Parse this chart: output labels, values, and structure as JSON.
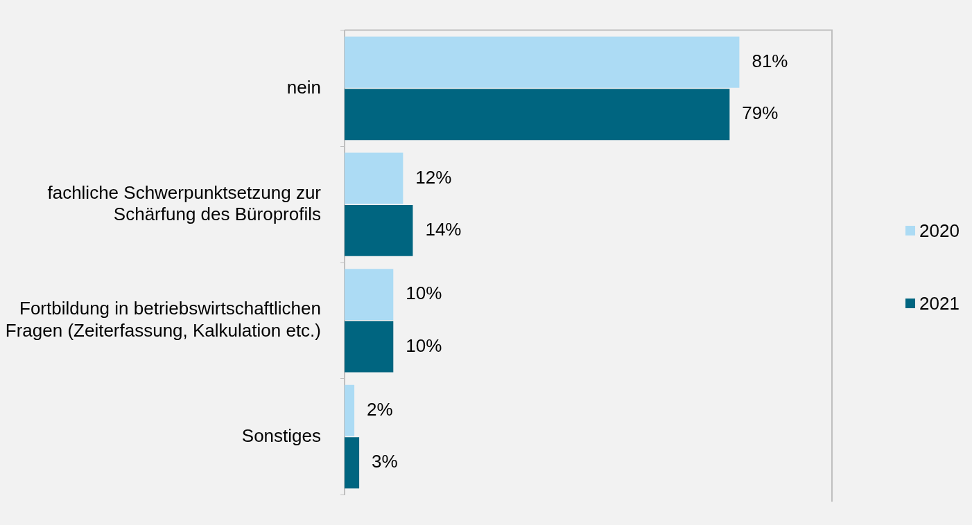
{
  "chart_data": {
    "type": "bar",
    "orientation": "horizontal",
    "categories": [
      "nein",
      "fachliche Schwerpunktsetzung zur Schärfung des Büroprofils",
      "Fortbildung in betriebswirtschaftlichen Fragen (Zeiterfassung, Kalkulation etc.)",
      "Sonstiges"
    ],
    "series": [
      {
        "name": "2020",
        "color": "#acdbf4",
        "values": [
          81,
          12,
          10,
          2
        ],
        "value_labels": [
          "81%",
          "12%",
          "10%",
          "2%"
        ]
      },
      {
        "name": "2021",
        "color": "#006580",
        "values": [
          79,
          14,
          10,
          3
        ],
        "value_labels": [
          "79%",
          "14%",
          "10%",
          "3%"
        ]
      }
    ],
    "xlim": [
      0,
      100
    ],
    "tick_labels": "y",
    "grid": false,
    "legend": "right"
  }
}
